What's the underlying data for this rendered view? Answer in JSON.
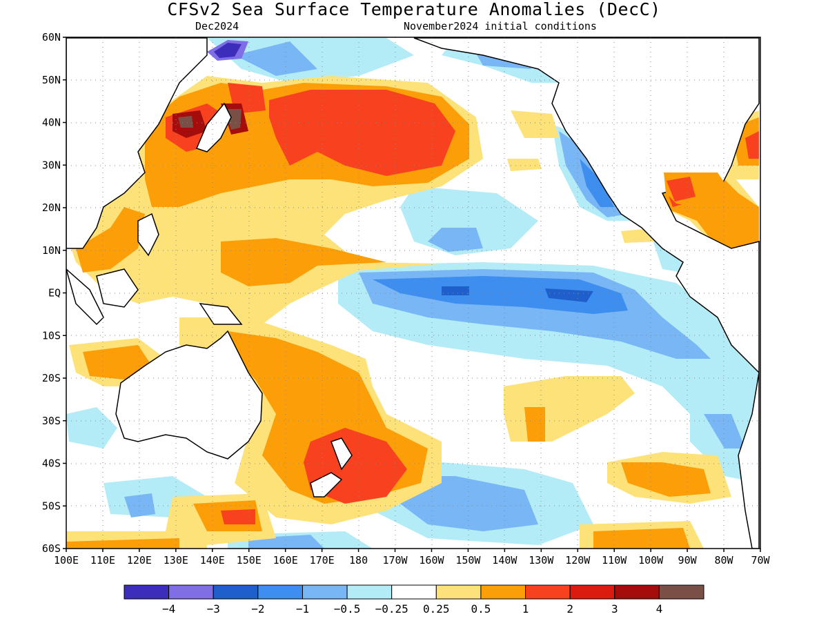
{
  "title": "CFSv2 Sea Surface Temperature Anomalies (DecC)",
  "subtitle_left": "Dec2024",
  "subtitle_right": "November2024 initial conditions",
  "lat_labels": [
    "60N",
    "50N",
    "40N",
    "30N",
    "20N",
    "10N",
    "EQ",
    "10S",
    "20S",
    "30S",
    "40S",
    "50S",
    "60S"
  ],
  "lon_labels": [
    "100E",
    "110E",
    "120E",
    "130E",
    "140E",
    "150E",
    "160E",
    "170E",
    "180",
    "170W",
    "160W",
    "150W",
    "140W",
    "130W",
    "120W",
    "110W",
    "100W",
    "90W",
    "80W",
    "70W"
  ],
  "colorbar": {
    "colors": [
      "#3d2dbb",
      "#7f6ee6",
      "#1f5fcc",
      "#3d8eee",
      "#78b6f6",
      "#b3ecf6",
      "#ffffff",
      "#fde27a",
      "#fb9e08",
      "#f8411e",
      "#db1a10",
      "#a50c0c",
      "#7a5046"
    ],
    "labels": [
      "−4",
      "−3",
      "−2",
      "−1",
      "−0.5",
      "−0.25",
      "0.25",
      "0.5",
      "1",
      "2",
      "3",
      "4"
    ]
  }
}
